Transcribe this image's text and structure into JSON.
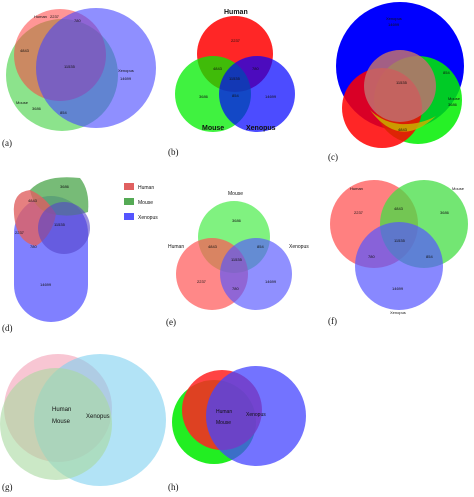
{
  "colors": {
    "human": "#ff3b3b",
    "mouse": "#2ecc2e",
    "xenopus": "#3333ff",
    "pink": "#f4a0b5",
    "lightblue": "#7fd0f0",
    "lightgreen": "#8fd68f"
  },
  "panels": {
    "a": {
      "label": "(a)",
      "human": "Human",
      "human_count": "2237",
      "mouse": "Mouse",
      "mouse_count": "3686",
      "xenopus": "Xenopus",
      "xenopus_count": "14699",
      "hm": "4843",
      "hx": "780",
      "mx": "854",
      "hmx": "11535"
    },
    "b": {
      "label": "(b)",
      "human": "Human",
      "mouse": "Mouse",
      "xenopus": "Xenopus",
      "human_count": "2237",
      "mouse_count": "3686",
      "xenopus_count": "14699",
      "hm": "4843",
      "hx": "780",
      "mx": "854",
      "hmx": "11535"
    },
    "c": {
      "label": "(c)",
      "xenopus": "Xenopus",
      "xenopus_count": "14699",
      "mouse": "Mouse",
      "mouse_count": "3686",
      "hmx": "11535",
      "mx": "854",
      "hm": "4843"
    },
    "d": {
      "label": "(d)",
      "legend": [
        "Human",
        "Mouse",
        "Xenopus"
      ],
      "mouse_count": "3686",
      "hm": "4843",
      "human_count": "2237",
      "hmx": "11535",
      "hx": "780",
      "xenopus_count": "14699"
    },
    "e": {
      "label": "(e)",
      "mouse": "Mouse",
      "human": "Human",
      "xenopus": "Xenopus",
      "mouse_count": "3686",
      "hm": "4843",
      "mx": "854",
      "hmx": "11535",
      "human_count": "2237",
      "hx": "780",
      "xenopus_count": "14699"
    },
    "f": {
      "label": "(f)",
      "human": "Human",
      "mouse": "Mouse",
      "xenopus": "Xenopus",
      "human_count": "2237",
      "mouse_count": "3686",
      "hm": "4843",
      "hmx": "11535",
      "hx": "780",
      "mx": "854",
      "xenopus_count": "14699"
    },
    "g": {
      "label": "(g)",
      "human": "Human",
      "mouse": "Mouse",
      "xenopus": "Xenopus"
    },
    "h": {
      "label": "(h)",
      "human": "Human",
      "mouse": "Mouse",
      "xenopus": "Xenopus"
    }
  }
}
